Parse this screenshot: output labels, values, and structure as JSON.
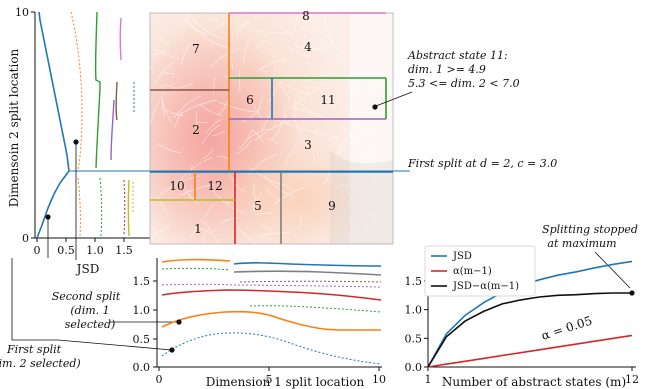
{
  "left_panel": {
    "ylabel": "Dimensoin 2 split location",
    "xlabel": "JSD",
    "yticks": [
      "0",
      "10"
    ],
    "xticks": [
      "0",
      "0.5",
      "1.0",
      "1.5"
    ]
  },
  "map": {
    "regions": [
      {
        "id": "r1",
        "label": "1"
      },
      {
        "id": "r2",
        "label": "2"
      },
      {
        "id": "r3",
        "label": "3"
      },
      {
        "id": "r4",
        "label": "4"
      },
      {
        "id": "r5",
        "label": "5"
      },
      {
        "id": "r6",
        "label": "6"
      },
      {
        "id": "r7",
        "label": "7"
      },
      {
        "id": "r8",
        "label": "8"
      },
      {
        "id": "r9",
        "label": "9"
      },
      {
        "id": "r10",
        "label": "10"
      },
      {
        "id": "r11",
        "label": "11"
      },
      {
        "id": "r12",
        "label": "12"
      }
    ]
  },
  "annotations": {
    "abstract_state": [
      "Abstract state 11:",
      "dim. 1 >= 4.9",
      "5.3 <= dim. 2 < 7.0"
    ],
    "first_split_at": "First split at d = 2, c = 3.0",
    "second_split": [
      "Second split",
      "(dim. 1",
      "selected)"
    ],
    "first_split": [
      "First split",
      "(dim. 2 selected)"
    ],
    "splitting_stopped": [
      "Splitting stopped",
      "at maximum"
    ]
  },
  "bottom_panel": {
    "xlabel": "Dimension 1 split location",
    "xticks": [
      "0",
      "5",
      "10"
    ],
    "yticks": [
      "0.0",
      "0.5",
      "1.0",
      "1.5"
    ]
  },
  "chart_data": {
    "type": "line",
    "xlabel": "Number of abstract states (m)",
    "x": [
      1,
      2,
      3,
      4,
      5,
      6,
      7,
      8,
      9,
      10,
      11,
      12
    ],
    "ylim": [
      0,
      1.9
    ],
    "xticks": [
      "1",
      "12"
    ],
    "yticks": [
      "0.0",
      "0.5",
      "1.0",
      "1.5"
    ],
    "legend_position": "top-left",
    "series": [
      {
        "name": "JSD",
        "color": "#1f77b4",
        "values": [
          0.0,
          0.58,
          0.9,
          1.12,
          1.3,
          1.42,
          1.52,
          1.6,
          1.66,
          1.73,
          1.79,
          1.84
        ]
      },
      {
        "name": "α(m−1)",
        "color": "#d62728",
        "values": [
          0.0,
          0.05,
          0.1,
          0.15,
          0.2,
          0.25,
          0.3,
          0.35,
          0.4,
          0.45,
          0.5,
          0.55
        ]
      },
      {
        "name": "JSD−α(m−1)",
        "color": "#111111",
        "values": [
          0.0,
          0.53,
          0.8,
          0.97,
          1.1,
          1.17,
          1.22,
          1.25,
          1.26,
          1.28,
          1.29,
          1.29
        ]
      }
    ],
    "alpha_label": "α = 0.05"
  }
}
